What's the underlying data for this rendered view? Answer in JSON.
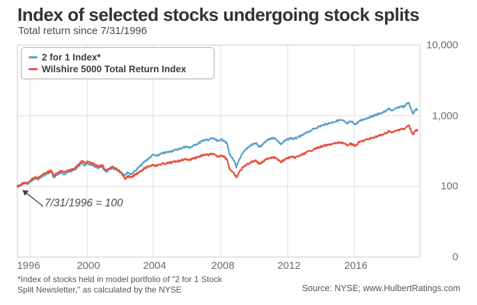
{
  "header": {
    "title": "Index of selected stocks undergoing stock splits",
    "subtitle": "Total return since 7/31/1996"
  },
  "legend": {
    "items": [
      {
        "label": "2 for 1 Index*",
        "color": "#5aa2c8"
      },
      {
        "label": "Wilshire 5000 Total Return Index",
        "color": "#e8503a"
      }
    ]
  },
  "annotation": {
    "text": "7/31/1996 = 100"
  },
  "axis": {
    "x_ticks": [
      "1996",
      "2000",
      "2004",
      "2008",
      "2012",
      "2016"
    ],
    "y_ticks": [
      "10,000",
      "1,000",
      "100",
      "0"
    ]
  },
  "footnote": {
    "line1": "*Index of stocks held in model portfolio of \"2 for 1 Stock",
    "line2": "Split Newsletter,\" as calculated by the NYSE"
  },
  "source": "Source: NYSE; www.HulbertRatings.com",
  "chart_data": {
    "type": "line",
    "title": "Index of selected stocks undergoing stock splits",
    "subtitle": "Total return since 7/31/1996",
    "base_note": "7/31/1996 = 100",
    "x_axis": {
      "range": [
        1996.58,
        2019.82
      ],
      "ticks": [
        1996,
        2000,
        2004,
        2008,
        2012,
        2016
      ]
    },
    "y_axis": {
      "scale": "log",
      "range": [
        10,
        10000
      ],
      "tick_values": [
        10000,
        1000,
        100,
        0
      ],
      "gridline_values": [
        1000,
        100
      ]
    },
    "legend_position": "top-left",
    "series": [
      {
        "name": "2 for 1 Index*",
        "color": "#5aa2c8",
        "points": [
          [
            1996.58,
            100
          ],
          [
            1996.8,
            105
          ],
          [
            1997.0,
            112
          ],
          [
            1997.15,
            107
          ],
          [
            1997.4,
            122
          ],
          [
            1997.6,
            130
          ],
          [
            1997.75,
            126
          ],
          [
            1998.0,
            138
          ],
          [
            1998.3,
            152
          ],
          [
            1998.55,
            158
          ],
          [
            1998.68,
            134
          ],
          [
            1998.85,
            145
          ],
          [
            1999.1,
            156
          ],
          [
            1999.3,
            150
          ],
          [
            1999.6,
            162
          ],
          [
            1999.9,
            174
          ],
          [
            2000.15,
            198
          ],
          [
            2000.3,
            214
          ],
          [
            2000.5,
            198
          ],
          [
            2000.65,
            210
          ],
          [
            2000.85,
            200
          ],
          [
            2001.05,
            190
          ],
          [
            2001.25,
            180
          ],
          [
            2001.45,
            192
          ],
          [
            2001.7,
            160
          ],
          [
            2001.9,
            173
          ],
          [
            2002.05,
            181
          ],
          [
            2002.3,
            174
          ],
          [
            2002.55,
            157
          ],
          [
            2002.8,
            146
          ],
          [
            2002.95,
            158
          ],
          [
            2003.15,
            149
          ],
          [
            2003.4,
            168
          ],
          [
            2003.7,
            198
          ],
          [
            2003.95,
            228
          ],
          [
            2004.2,
            252
          ],
          [
            2004.42,
            283
          ],
          [
            2004.6,
            270
          ],
          [
            2004.8,
            285
          ],
          [
            2005.05,
            298
          ],
          [
            2005.3,
            308
          ],
          [
            2005.55,
            320
          ],
          [
            2005.8,
            333
          ],
          [
            2006.05,
            348
          ],
          [
            2006.3,
            368
          ],
          [
            2006.5,
            352
          ],
          [
            2006.75,
            378
          ],
          [
            2007.0,
            405
          ],
          [
            2007.25,
            438
          ],
          [
            2007.45,
            462
          ],
          [
            2007.6,
            445
          ],
          [
            2007.8,
            485
          ],
          [
            2008.0,
            460
          ],
          [
            2008.15,
            435
          ],
          [
            2008.35,
            465
          ],
          [
            2008.55,
            440
          ],
          [
            2008.7,
            395
          ],
          [
            2008.82,
            290
          ],
          [
            2008.95,
            260
          ],
          [
            2009.1,
            230
          ],
          [
            2009.22,
            185
          ],
          [
            2009.4,
            245
          ],
          [
            2009.6,
            295
          ],
          [
            2009.8,
            340
          ],
          [
            2010.0,
            375
          ],
          [
            2010.2,
            400
          ],
          [
            2010.35,
            412
          ],
          [
            2010.55,
            360
          ],
          [
            2010.75,
            392
          ],
          [
            2010.95,
            438
          ],
          [
            2011.15,
            470
          ],
          [
            2011.35,
            488
          ],
          [
            2011.5,
            468
          ],
          [
            2011.65,
            432
          ],
          [
            2011.8,
            395
          ],
          [
            2011.95,
            428
          ],
          [
            2012.18,
            465
          ],
          [
            2012.4,
            485
          ],
          [
            2012.55,
            470
          ],
          [
            2012.75,
            492
          ],
          [
            2013.0,
            525
          ],
          [
            2013.25,
            570
          ],
          [
            2013.5,
            615
          ],
          [
            2013.75,
            662
          ],
          [
            2014.0,
            705
          ],
          [
            2014.25,
            740
          ],
          [
            2014.5,
            775
          ],
          [
            2014.75,
            808
          ],
          [
            2015.0,
            840
          ],
          [
            2015.2,
            868
          ],
          [
            2015.4,
            848
          ],
          [
            2015.62,
            770
          ],
          [
            2015.8,
            830
          ],
          [
            2015.95,
            810
          ],
          [
            2016.1,
            755
          ],
          [
            2016.3,
            830
          ],
          [
            2016.5,
            880
          ],
          [
            2016.7,
            915
          ],
          [
            2016.9,
            955
          ],
          [
            2017.1,
            995
          ],
          [
            2017.3,
            1035
          ],
          [
            2017.5,
            1075
          ],
          [
            2017.7,
            1120
          ],
          [
            2017.9,
            1185
          ],
          [
            2018.05,
            1265
          ],
          [
            2018.2,
            1185
          ],
          [
            2018.35,
            1235
          ],
          [
            2018.55,
            1300
          ],
          [
            2018.75,
            1370
          ],
          [
            2018.9,
            1330
          ],
          [
            2019.0,
            1420
          ],
          [
            2019.18,
            1545
          ],
          [
            2019.3,
            1260
          ],
          [
            2019.42,
            1070
          ],
          [
            2019.52,
            1195
          ],
          [
            2019.6,
            1245
          ],
          [
            2019.68,
            1205
          ]
        ]
      },
      {
        "name": "Wilshire 5000 Total Return Index",
        "color": "#e8503a",
        "points": [
          [
            1996.58,
            100
          ],
          [
            1996.8,
            107
          ],
          [
            1997.0,
            114
          ],
          [
            1997.15,
            110
          ],
          [
            1997.4,
            126
          ],
          [
            1997.6,
            135
          ],
          [
            1997.75,
            131
          ],
          [
            1998.0,
            145
          ],
          [
            1998.3,
            160
          ],
          [
            1998.55,
            166
          ],
          [
            1998.68,
            141
          ],
          [
            1998.85,
            153
          ],
          [
            1999.1,
            165
          ],
          [
            1999.3,
            159
          ],
          [
            1999.6,
            170
          ],
          [
            1999.9,
            181
          ],
          [
            2000.15,
            210
          ],
          [
            2000.3,
            228
          ],
          [
            2000.5,
            214
          ],
          [
            2000.65,
            224
          ],
          [
            2000.85,
            215
          ],
          [
            2001.05,
            203
          ],
          [
            2001.25,
            190
          ],
          [
            2001.45,
            203
          ],
          [
            2001.7,
            168
          ],
          [
            2001.9,
            180
          ],
          [
            2002.05,
            188
          ],
          [
            2002.3,
            181
          ],
          [
            2002.55,
            160
          ],
          [
            2002.8,
            127
          ],
          [
            2002.95,
            140
          ],
          [
            2003.15,
            133
          ],
          [
            2003.4,
            148
          ],
          [
            2003.7,
            166
          ],
          [
            2003.95,
            182
          ],
          [
            2004.2,
            193
          ],
          [
            2004.42,
            203
          ],
          [
            2004.6,
            196
          ],
          [
            2004.8,
            205
          ],
          [
            2005.05,
            210
          ],
          [
            2005.3,
            214
          ],
          [
            2005.55,
            221
          ],
          [
            2005.8,
            228
          ],
          [
            2006.05,
            235
          ],
          [
            2006.3,
            244
          ],
          [
            2006.5,
            237
          ],
          [
            2006.75,
            250
          ],
          [
            2007.0,
            262
          ],
          [
            2007.25,
            274
          ],
          [
            2007.45,
            283
          ],
          [
            2007.6,
            276
          ],
          [
            2007.8,
            291
          ],
          [
            2008.0,
            277
          ],
          [
            2008.15,
            263
          ],
          [
            2008.35,
            276
          ],
          [
            2008.55,
            262
          ],
          [
            2008.7,
            238
          ],
          [
            2008.82,
            180
          ],
          [
            2008.95,
            163
          ],
          [
            2009.1,
            150
          ],
          [
            2009.22,
            133
          ],
          [
            2009.4,
            162
          ],
          [
            2009.6,
            186
          ],
          [
            2009.8,
            203
          ],
          [
            2010.0,
            216
          ],
          [
            2010.2,
            228
          ],
          [
            2010.35,
            234
          ],
          [
            2010.55,
            208
          ],
          [
            2010.75,
            222
          ],
          [
            2010.95,
            242
          ],
          [
            2011.15,
            255
          ],
          [
            2011.35,
            262
          ],
          [
            2011.5,
            253
          ],
          [
            2011.65,
            236
          ],
          [
            2011.8,
            220
          ],
          [
            2011.95,
            235
          ],
          [
            2012.18,
            252
          ],
          [
            2012.4,
            262
          ],
          [
            2012.55,
            255
          ],
          [
            2012.75,
            264
          ],
          [
            2013.0,
            280
          ],
          [
            2013.25,
            300
          ],
          [
            2013.5,
            320
          ],
          [
            2013.75,
            340
          ],
          [
            2014.0,
            358
          ],
          [
            2014.25,
            372
          ],
          [
            2014.5,
            386
          ],
          [
            2014.75,
            398
          ],
          [
            2015.0,
            410
          ],
          [
            2015.2,
            420
          ],
          [
            2015.4,
            412
          ],
          [
            2015.62,
            378
          ],
          [
            2015.8,
            402
          ],
          [
            2015.95,
            394
          ],
          [
            2016.1,
            372
          ],
          [
            2016.3,
            420
          ],
          [
            2016.5,
            440
          ],
          [
            2016.7,
            455
          ],
          [
            2016.9,
            472
          ],
          [
            2017.1,
            490
          ],
          [
            2017.3,
            508
          ],
          [
            2017.5,
            525
          ],
          [
            2017.7,
            545
          ],
          [
            2017.9,
            575
          ],
          [
            2018.05,
            612
          ],
          [
            2018.2,
            578
          ],
          [
            2018.35,
            600
          ],
          [
            2018.55,
            628
          ],
          [
            2018.75,
            658
          ],
          [
            2018.9,
            640
          ],
          [
            2019.0,
            678
          ],
          [
            2019.18,
            735
          ],
          [
            2019.3,
            620
          ],
          [
            2019.42,
            545
          ],
          [
            2019.52,
            605
          ],
          [
            2019.6,
            635
          ],
          [
            2019.68,
            618
          ]
        ]
      }
    ]
  }
}
